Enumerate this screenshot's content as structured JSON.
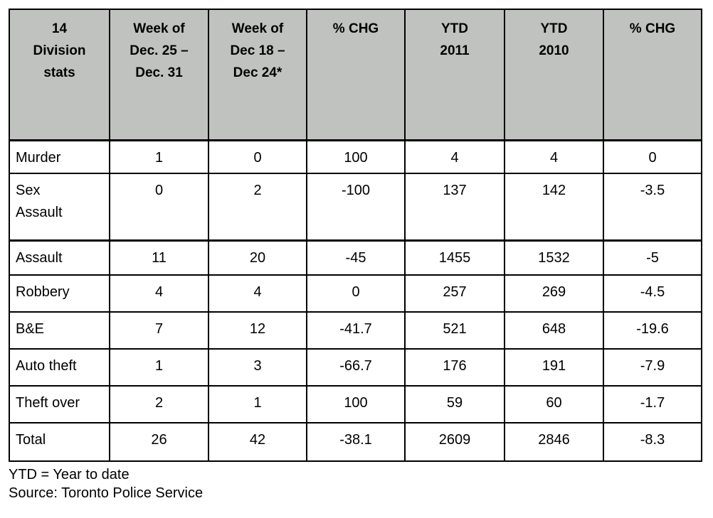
{
  "table": {
    "header": [
      "14\nDivision\nstats",
      "Week of\nDec. 25 –\nDec. 31",
      "Week of\nDec 18 –\nDec 24*",
      "% CHG",
      "YTD\n2011",
      "YTD\n2010",
      "% CHG"
    ],
    "rows": [
      {
        "label": "Murder",
        "values": [
          "1",
          "0",
          "100",
          "4",
          "4",
          "0"
        ]
      },
      {
        "label": "Sex\nAssault",
        "values": [
          "0",
          "2",
          "-100",
          "137",
          "142",
          "-3.5"
        ]
      },
      {
        "label": "Assault",
        "values": [
          "11",
          "20",
          "-45",
          "1455",
          "1532",
          "-5"
        ]
      },
      {
        "label": "Robbery",
        "values": [
          "4",
          "4",
          "0",
          "257",
          "269",
          "-4.5"
        ]
      },
      {
        "label": "B&E",
        "values": [
          "7",
          "12",
          "-41.7",
          "521",
          "648",
          "-19.6"
        ]
      },
      {
        "label": "Auto theft",
        "values": [
          "1",
          "3",
          "-66.7",
          "176",
          "191",
          "-7.9"
        ]
      },
      {
        "label": "Theft over",
        "values": [
          "2",
          "1",
          "100",
          "59",
          "60",
          "-1.7"
        ]
      },
      {
        "label": "Total",
        "values": [
          "26",
          "42",
          "-38.1",
          "2609",
          "2846",
          "-8.3"
        ]
      }
    ]
  },
  "footnotes": {
    "ytd_note": "YTD = Year to date",
    "source_note": "Source: Toronto Police Service"
  },
  "colors": {
    "header_bg": "#c0c2c0",
    "border": "#000000",
    "text": "#000000",
    "page_bg": "#ffffff"
  },
  "chart_data": {
    "type": "table",
    "title": "14 Division stats",
    "columns": [
      "14 Division stats",
      "Week of Dec. 25 – Dec. 31",
      "Week of Dec 18 – Dec 24*",
      "% CHG",
      "YTD 2011",
      "YTD 2010",
      "% CHG"
    ],
    "rows": [
      [
        "Murder",
        1,
        0,
        100,
        4,
        4,
        0
      ],
      [
        "Sex Assault",
        0,
        2,
        -100,
        137,
        142,
        -3.5
      ],
      [
        "Assault",
        11,
        20,
        -45,
        1455,
        1532,
        -5
      ],
      [
        "Robbery",
        4,
        4,
        0,
        257,
        269,
        -4.5
      ],
      [
        "B&E",
        7,
        12,
        -41.7,
        521,
        648,
        -19.6
      ],
      [
        "Auto theft",
        1,
        3,
        -66.7,
        176,
        191,
        -7.9
      ],
      [
        "Theft over",
        2,
        1,
        100,
        59,
        60,
        -1.7
      ],
      [
        "Total",
        26,
        42,
        -38.1,
        2609,
        2846,
        -8.3
      ]
    ],
    "footnotes": [
      "YTD = Year to date",
      "Source: Toronto Police Service"
    ],
    "layout": {
      "header_background": "#c0c2c0",
      "grid": true
    }
  }
}
